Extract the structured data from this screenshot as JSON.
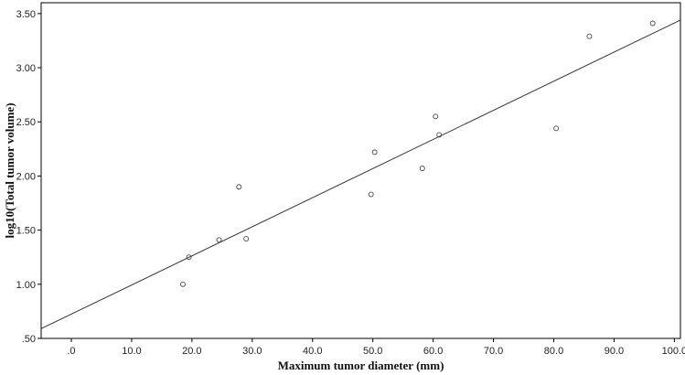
{
  "chart_data": {
    "type": "scatter",
    "title": "",
    "xlabel": "Maximum tumor diameter (mm)",
    "ylabel": "log10(Total tumor volume)",
    "xlim": [
      -5,
      101
    ],
    "ylim": [
      0.5,
      3.6
    ],
    "x_ticks": [
      0,
      10,
      20,
      30,
      40,
      50,
      60,
      70,
      80,
      90,
      100
    ],
    "x_tick_labels": [
      ".0",
      "10.0",
      "20.0",
      "30.0",
      "40.0",
      "50.0",
      "60.0",
      "70.0",
      "80.0",
      "90.0",
      "100.0"
    ],
    "y_ticks": [
      0.5,
      1.0,
      1.5,
      2.0,
      2.5,
      3.0,
      3.5
    ],
    "y_tick_labels": [
      ".50",
      "1.00",
      "1.50",
      "2.00",
      "2.50",
      "3.00",
      "3.50"
    ],
    "grid": false,
    "legend": "none",
    "series": [
      {
        "points": [
          {
            "x": 18.5,
            "y": 1.0
          },
          {
            "x": 19.5,
            "y": 1.25
          },
          {
            "x": 24.5,
            "y": 1.41
          },
          {
            "x": 27.8,
            "y": 1.9
          },
          {
            "x": 29.0,
            "y": 1.42
          },
          {
            "x": 49.7,
            "y": 1.83
          },
          {
            "x": 50.3,
            "y": 2.22
          },
          {
            "x": 58.2,
            "y": 2.07
          },
          {
            "x": 60.4,
            "y": 2.55
          },
          {
            "x": 61.0,
            "y": 2.38
          },
          {
            "x": 80.4,
            "y": 2.44
          },
          {
            "x": 85.9,
            "y": 3.29
          },
          {
            "x": 96.4,
            "y": 3.41
          }
        ]
      }
    ],
    "fit_line": {
      "x": [
        -5,
        101
      ],
      "y": [
        0.59,
        3.44
      ]
    },
    "colors": {
      "marker": "#444444",
      "line": "#333333",
      "axis": "#000000"
    }
  }
}
